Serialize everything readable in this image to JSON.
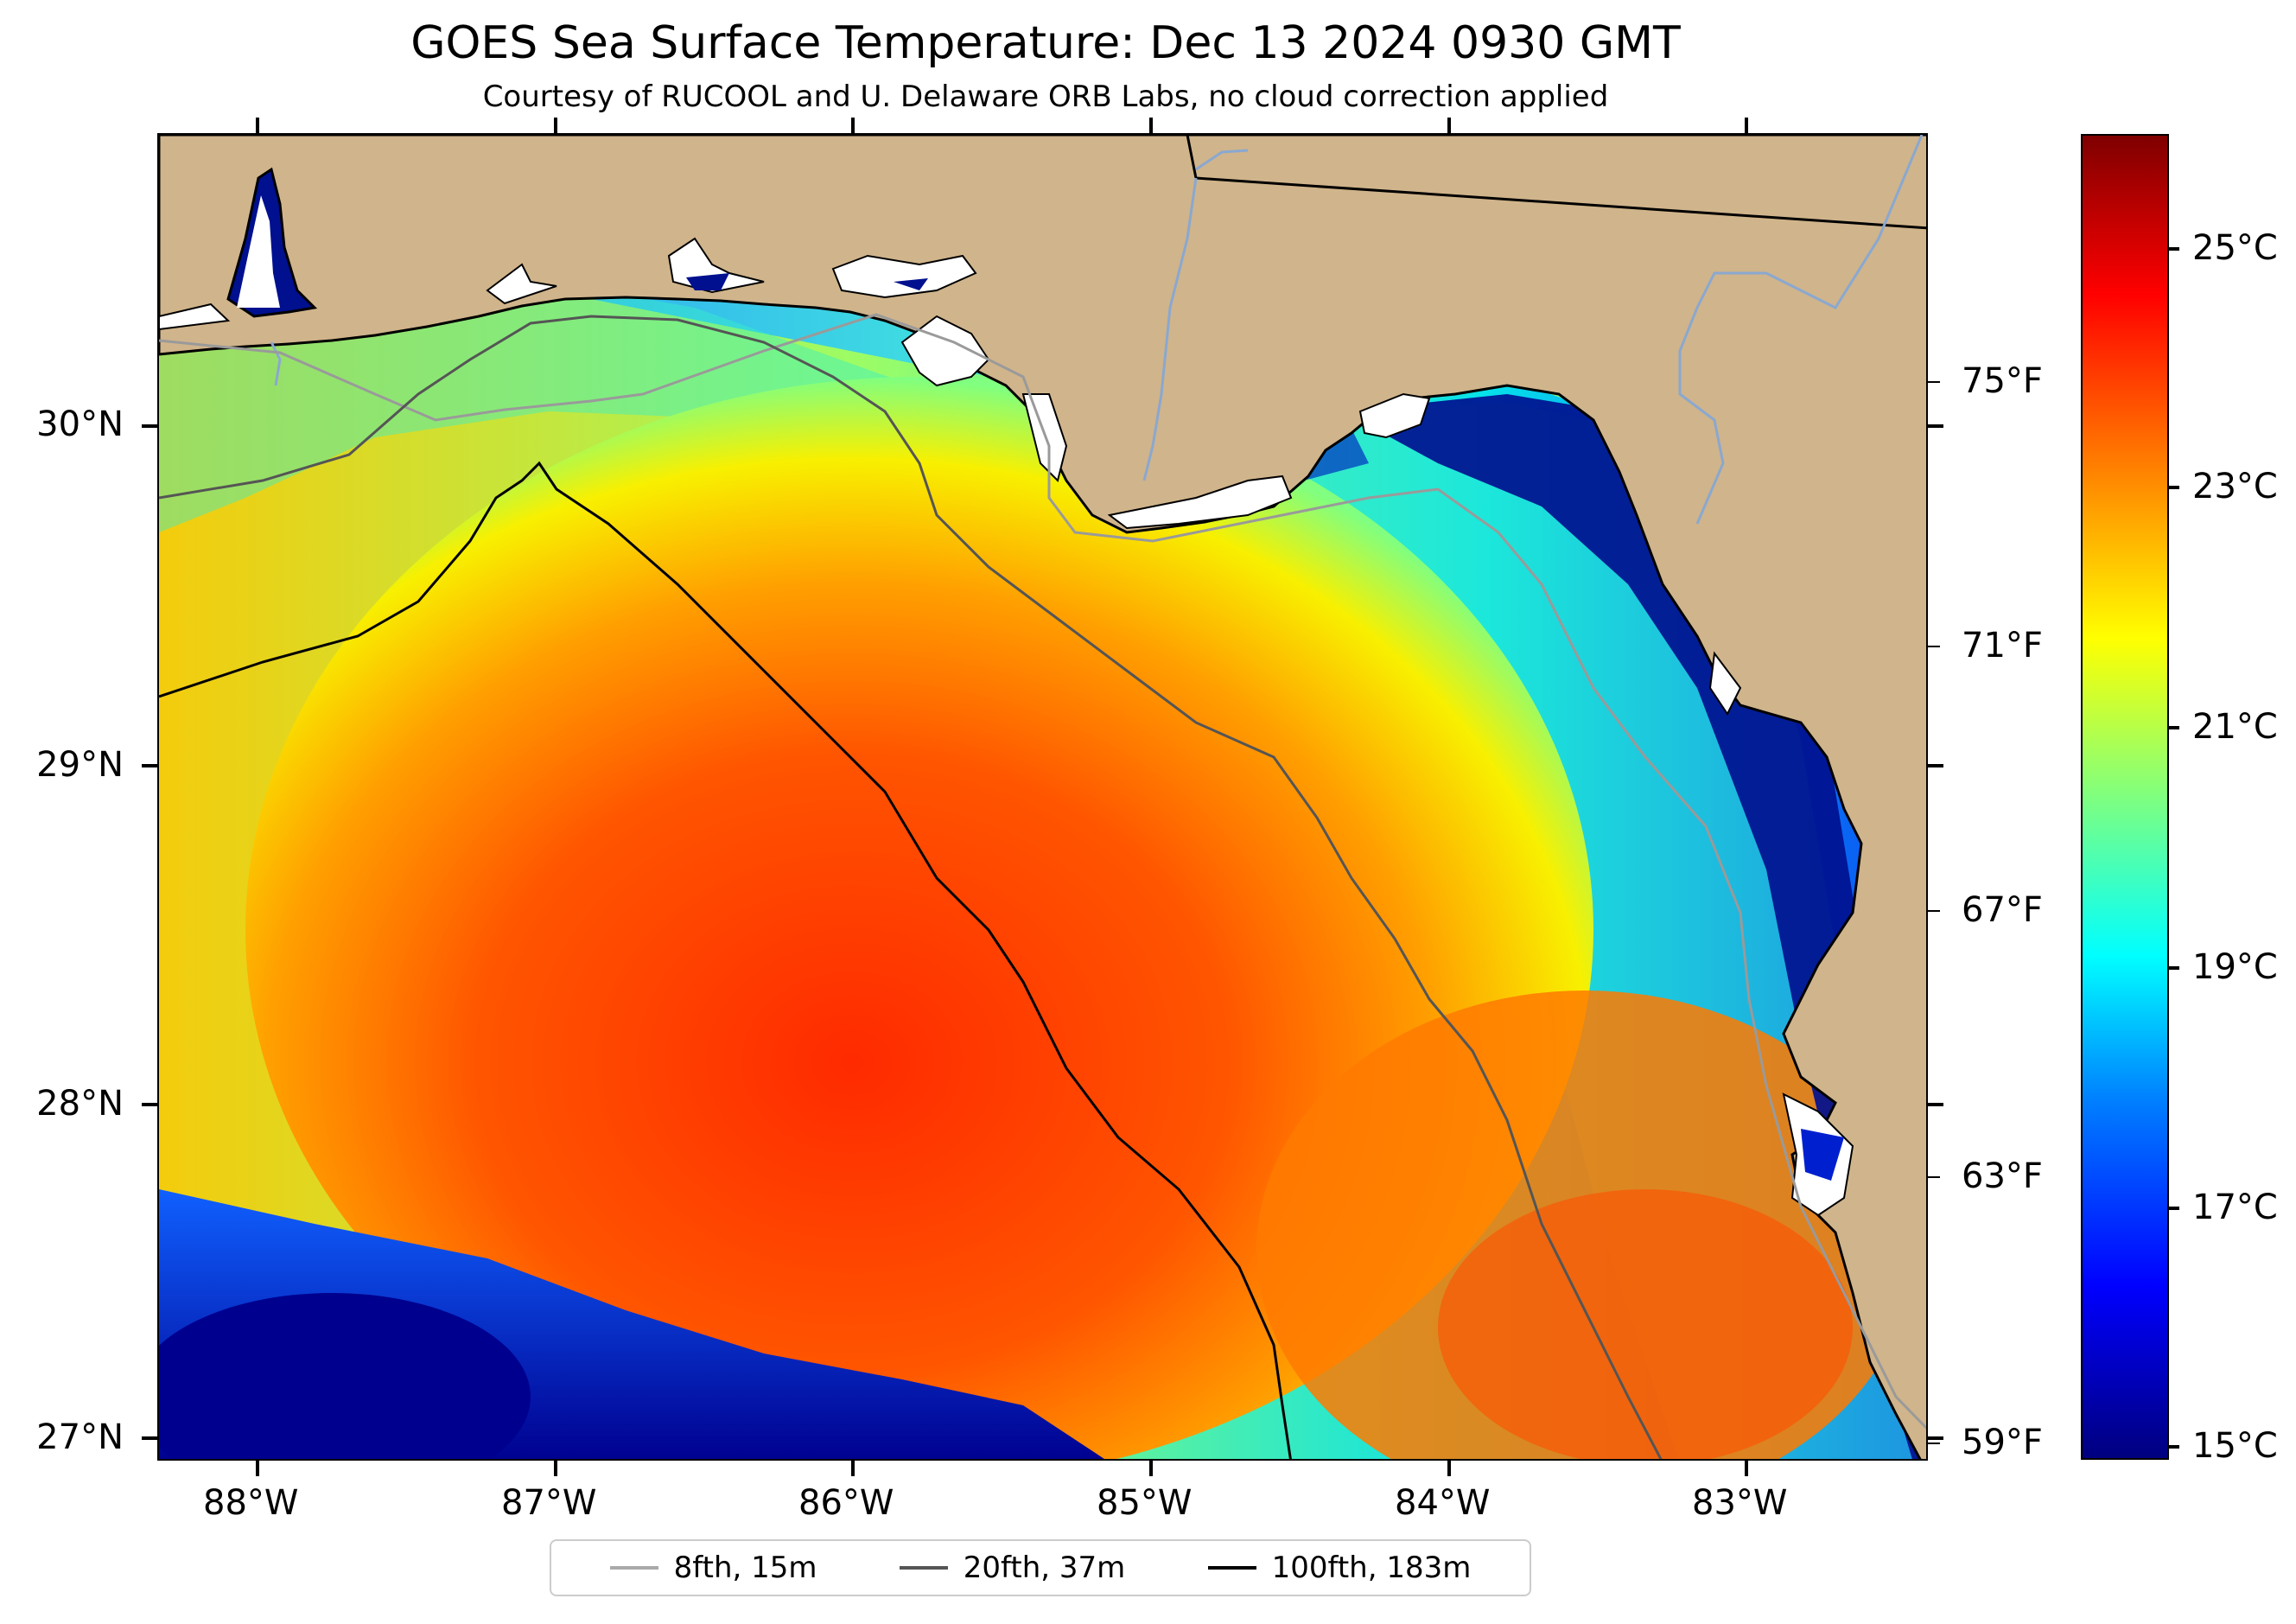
{
  "title": "GOES Sea Surface Temperature: Dec 13 2024 0930 GMT",
  "subtitle": "Courtesy of RUCOOL and U. Delaware ORB Labs, no cloud correction applied",
  "map": {
    "lat_ticks": [
      "30°N",
      "29°N",
      "28°N",
      "27°N"
    ],
    "lon_ticks": [
      "88°W",
      "87°W",
      "86°W",
      "85°W",
      "84°W",
      "83°W"
    ],
    "lon_range": [
      -88.33,
      -82.38
    ],
    "lat_range": [
      26.95,
      30.88
    ],
    "colors": {
      "land": "#d0b48b",
      "coast": "#000000",
      "cloud_mask": "#ffffff"
    }
  },
  "colorbar": {
    "celsius_ticks": [
      "25°C",
      "23°C",
      "21°C",
      "19°C",
      "17°C",
      "15°C"
    ],
    "fahrenheit_ticks": [
      "75°F",
      "71°F",
      "67°F",
      "63°F",
      "59°F"
    ],
    "range_c": [
      14.8,
      25.8
    ],
    "colormap": "jet"
  },
  "legend": {
    "items": [
      {
        "label": "8fth, 15m",
        "color": "#aaaaaa"
      },
      {
        "label": "20fth, 37m",
        "color": "#555555"
      },
      {
        "label": "100fth, 183m",
        "color": "#000000"
      }
    ]
  }
}
